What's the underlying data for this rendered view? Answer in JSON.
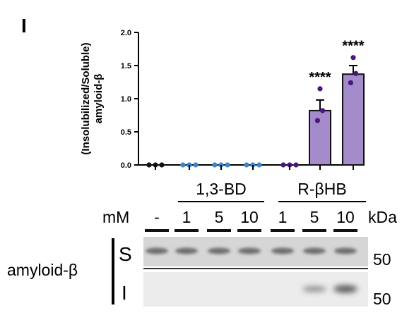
{
  "panel_label": "I",
  "chart_data": {
    "type": "bar",
    "ylabel_line1": "(Insolubilized/Soluble)",
    "ylabel_line2": "amyloid-β",
    "ylim": [
      0,
      2.0
    ],
    "yticks": [
      "0.0",
      "0.5",
      "1.0",
      "1.5",
      "2.0"
    ],
    "ytick_values": [
      0,
      0.5,
      1.0,
      1.5,
      2.0
    ],
    "categories": [
      "-",
      "1",
      "5",
      "10",
      "1",
      "5",
      "10"
    ],
    "values": [
      0,
      0,
      0,
      0,
      0,
      0.82,
      1.37
    ],
    "errors": [
      0,
      0,
      0,
      0,
      0,
      0.16,
      0.13
    ],
    "points": [
      [
        0,
        0,
        0
      ],
      [
        0,
        0,
        0
      ],
      [
        0,
        0,
        0
      ],
      [
        0,
        0,
        0
      ],
      [
        0,
        0,
        0
      ],
      [
        0.67,
        0.82,
        1.15
      ],
      [
        1.24,
        1.38,
        1.62
      ]
    ],
    "significance": [
      "",
      "",
      "",
      "",
      "",
      "****",
      "****"
    ],
    "group_labels": [
      "1,3-BD",
      "R-βHB"
    ],
    "colors": {
      "control_dot": "#111111",
      "bd_dot": "#3a86d6",
      "bhb_dot": "#4b1582",
      "bar_fill": "#a48bc9",
      "bar_edge": "#111111"
    }
  },
  "blot": {
    "unit_label": "mM",
    "concentrations": [
      "-",
      "1",
      "5",
      "10",
      "1",
      "5",
      "10"
    ],
    "kda_label": "kDa",
    "protein_label": "amyloid-β",
    "rows": [
      {
        "label": "S",
        "marker": "50"
      },
      {
        "label": "I",
        "marker": "50"
      }
    ]
  }
}
